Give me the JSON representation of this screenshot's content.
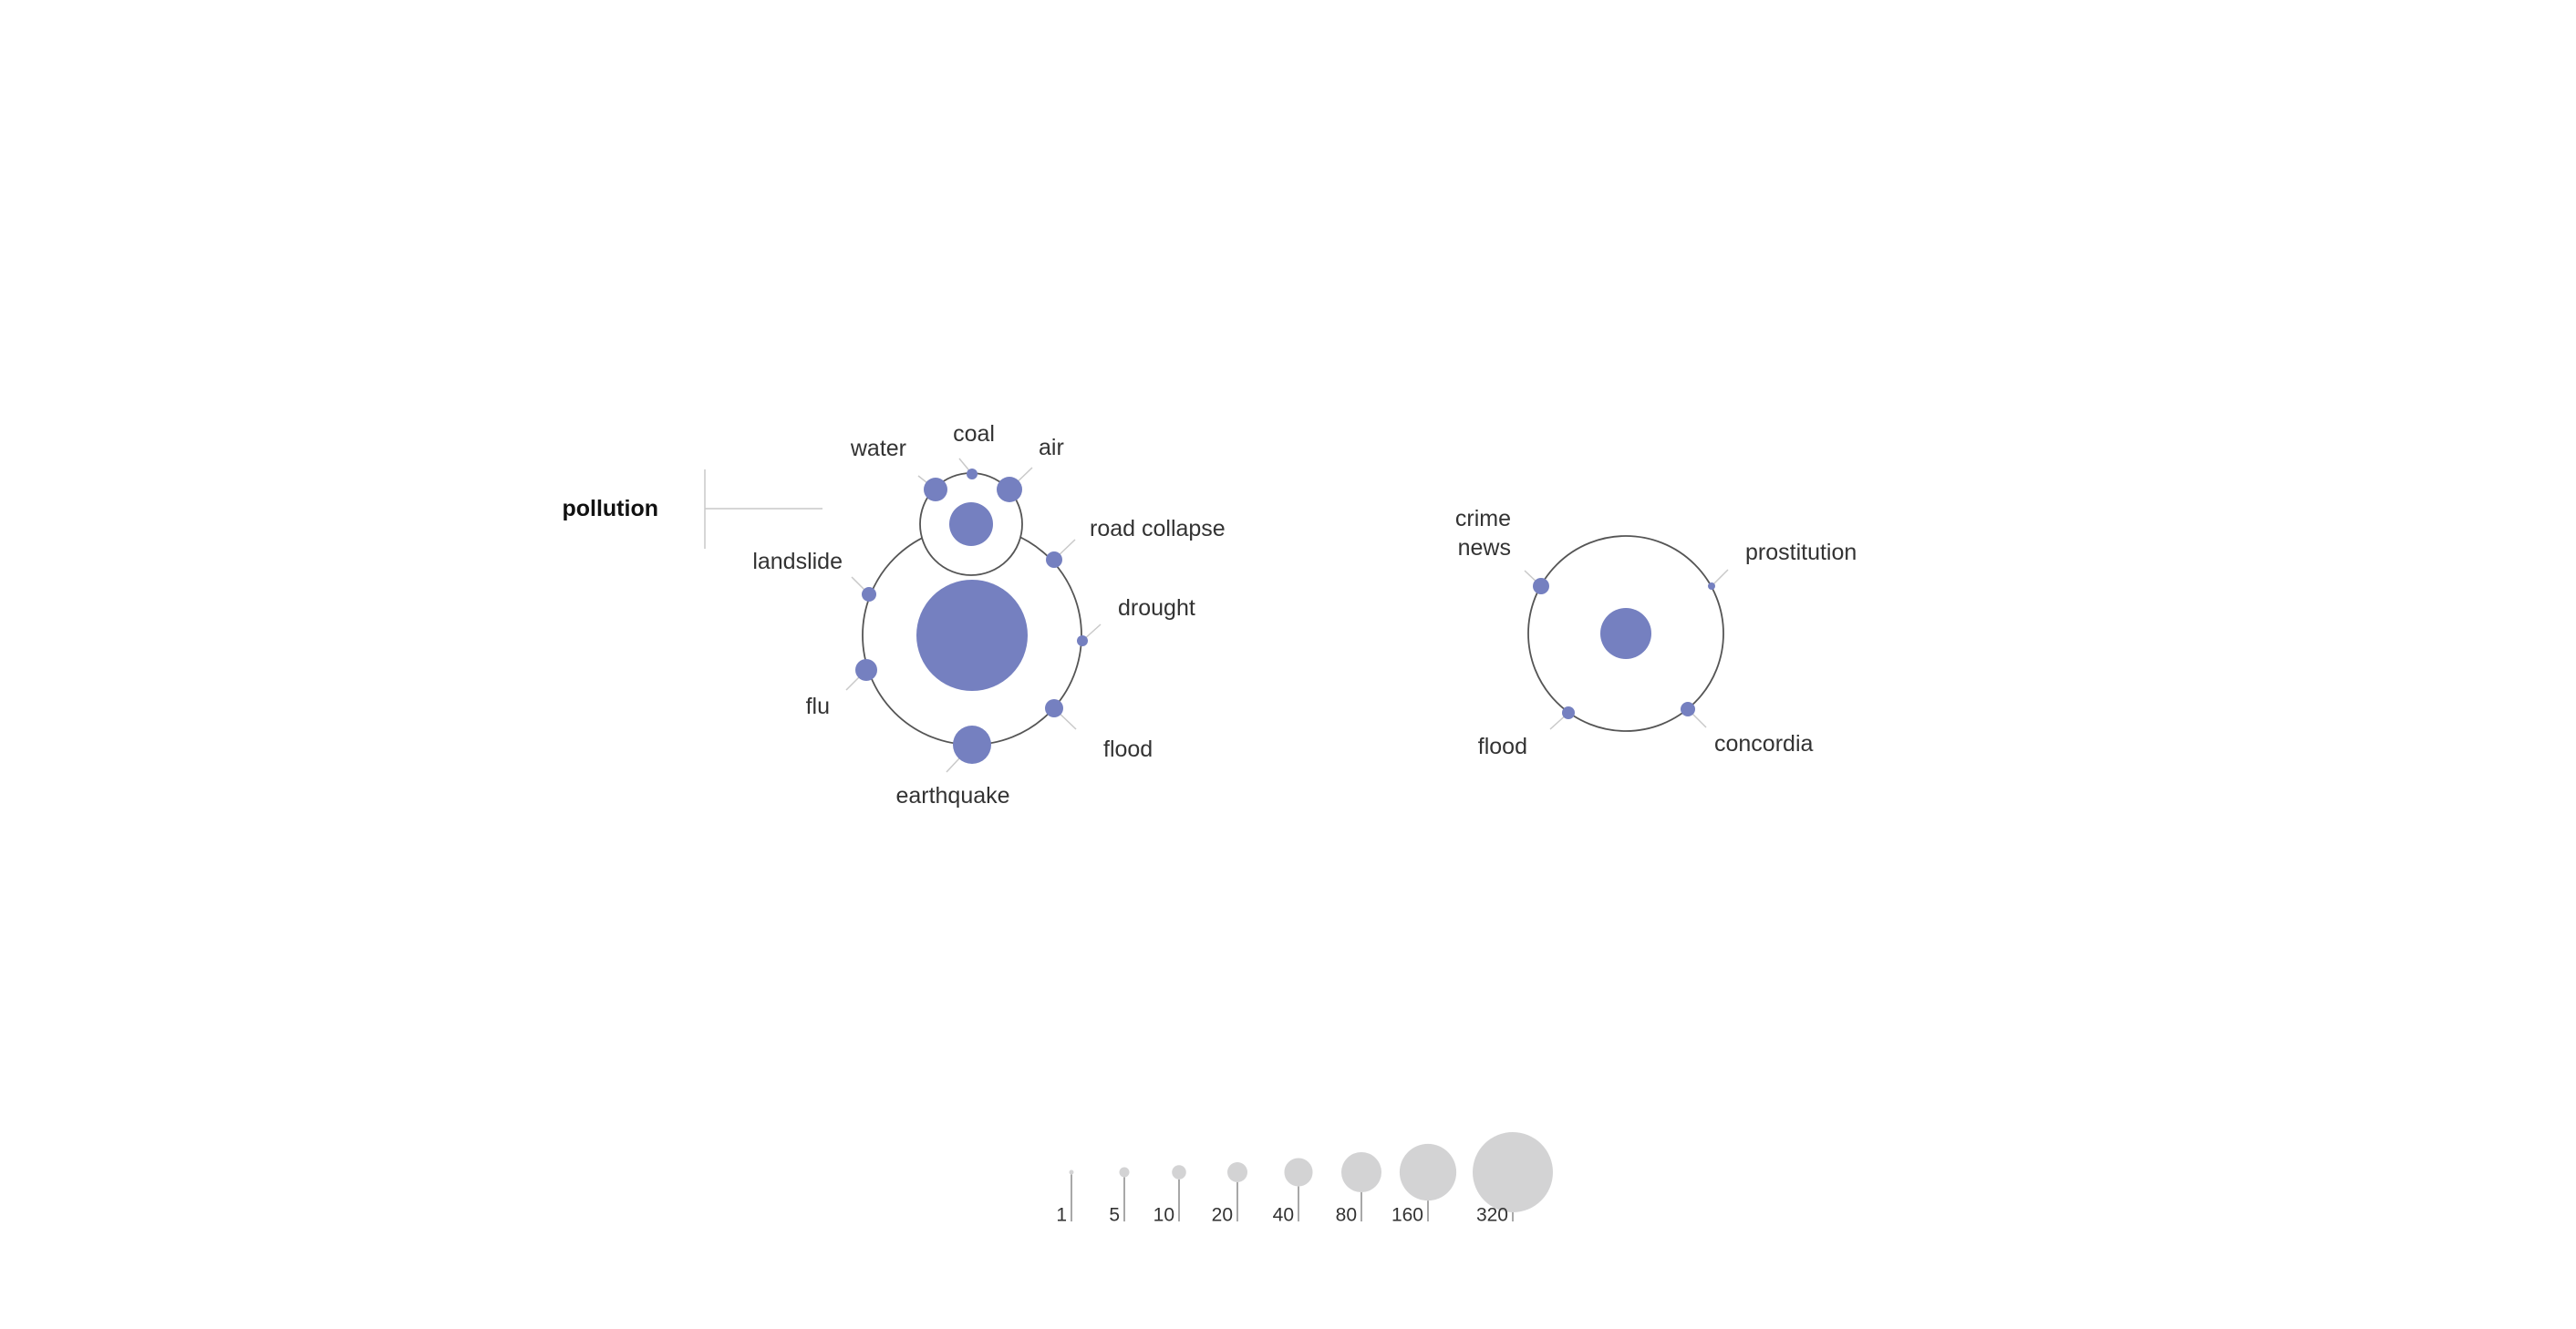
{
  "colors": {
    "node": "#7580c0",
    "ring": "#555555",
    "leader": "#c9c9c9",
    "legend_circle": "#d3d3d4",
    "legend_line": "#8a8a8a"
  },
  "section_label": "pollution",
  "clusters": [
    {
      "id": "left",
      "center_size": "very large",
      "subgroup": {
        "id": "pollution",
        "center_size": "medium",
        "nodes": [
          {
            "id": "water",
            "label": [
              "water"
            ]
          },
          {
            "id": "coal",
            "label": [
              "coal"
            ]
          },
          {
            "id": "air",
            "label": [
              "air"
            ]
          }
        ]
      },
      "nodes": [
        {
          "id": "road-collapse",
          "label": [
            "road collapse"
          ]
        },
        {
          "id": "drought",
          "label": [
            "drought"
          ]
        },
        {
          "id": "flood",
          "label": [
            "flood"
          ]
        },
        {
          "id": "earthquake",
          "label": [
            "earthquake"
          ]
        },
        {
          "id": "flu",
          "label": [
            "flu"
          ]
        },
        {
          "id": "landslide",
          "label": [
            "landslide"
          ]
        }
      ]
    },
    {
      "id": "right",
      "center_size": "medium",
      "nodes": [
        {
          "id": "crime-news",
          "label": [
            "crime",
            "news"
          ]
        },
        {
          "id": "prostitution",
          "label": [
            "prostitution"
          ]
        },
        {
          "id": "concordia",
          "label": [
            "concordia"
          ]
        },
        {
          "id": "flood",
          "label": [
            "flood"
          ]
        }
      ]
    }
  ],
  "legend": {
    "values": [
      "1",
      "5",
      "10",
      "20",
      "40",
      "80",
      "160",
      "320"
    ]
  }
}
